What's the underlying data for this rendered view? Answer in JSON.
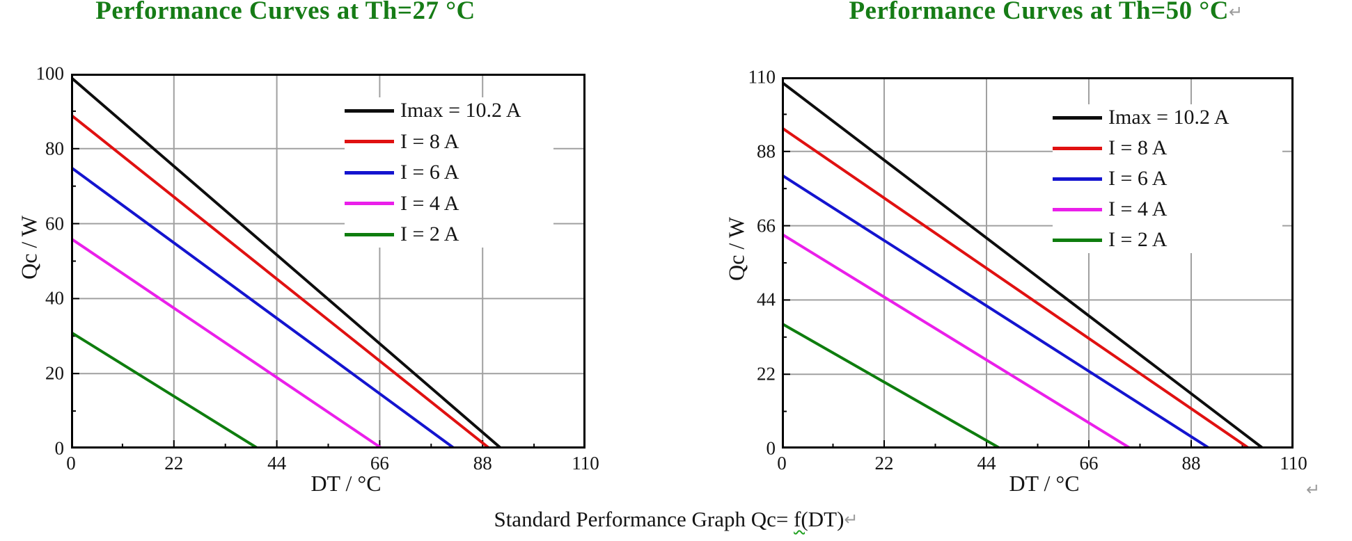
{
  "page": {
    "caption": {
      "pre": "Standard Performance Graph Qc= ",
      "wavy": "f(",
      "post": "DT)"
    },
    "return_mark": "↵",
    "title_color": "#167c16",
    "grid_color": "#a0a0a0",
    "axis_color": "#000000"
  },
  "chart_data": [
    {
      "type": "line",
      "title": "Performance Curves at Th=27 °C",
      "xlabel": "DT / °C",
      "ylabel": "Qc / W",
      "xlim": [
        0,
        110
      ],
      "ylim": [
        0,
        100
      ],
      "xticks": [
        0,
        22,
        44,
        66,
        88,
        110
      ],
      "yticks": [
        0,
        20,
        40,
        60,
        80,
        100
      ],
      "grid": true,
      "legend_position": "upper right",
      "series": [
        {
          "name": "Imax = 10.2 A",
          "color": "#0d0d0d",
          "points": [
            [
              0,
              99
            ],
            [
              92,
              0
            ]
          ]
        },
        {
          "name": "I = 8 A",
          "color": "#e01111",
          "points": [
            [
              0,
              89
            ],
            [
              89.5,
              0
            ]
          ]
        },
        {
          "name": "I = 6 A",
          "color": "#1414cf",
          "points": [
            [
              0,
              75
            ],
            [
              82,
              0
            ]
          ]
        },
        {
          "name": "I = 4 A",
          "color": "#ea1fea",
          "points": [
            [
              0,
              56
            ],
            [
              66.5,
              0
            ]
          ]
        },
        {
          "name": "I = 2 A",
          "color": "#0e7d0e",
          "points": [
            [
              0,
              31
            ],
            [
              40,
              0
            ]
          ]
        }
      ]
    },
    {
      "type": "line",
      "title": "Performance Curves at Th=50 °C",
      "xlabel": "DT / °C",
      "ylabel": "Qc / W",
      "xlim": [
        0,
        110
      ],
      "ylim": [
        0,
        110
      ],
      "xticks": [
        0,
        22,
        44,
        66,
        88,
        110
      ],
      "yticks": [
        0,
        22,
        44,
        66,
        88,
        110
      ],
      "grid": true,
      "legend_position": "upper right",
      "series": [
        {
          "name": "Imax = 10.2 A",
          "color": "#0d0d0d",
          "points": [
            [
              0,
              108.5
            ],
            [
              103.5,
              0
            ]
          ]
        },
        {
          "name": "I = 8 A",
          "color": "#e01111",
          "points": [
            [
              0,
              95
            ],
            [
              100.5,
              0
            ]
          ]
        },
        {
          "name": "I = 6 A",
          "color": "#1414cf",
          "points": [
            [
              0,
              81
            ],
            [
              92,
              0
            ]
          ]
        },
        {
          "name": "I = 4 A",
          "color": "#ea1fea",
          "points": [
            [
              0,
              63.5
            ],
            [
              75,
              0
            ]
          ]
        },
        {
          "name": "I = 2 A",
          "color": "#0e7d0e",
          "points": [
            [
              0,
              37
            ],
            [
              47,
              0
            ]
          ]
        }
      ]
    }
  ]
}
